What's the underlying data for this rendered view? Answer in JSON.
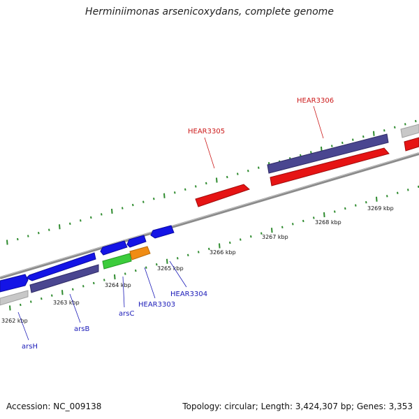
{
  "title": "Herminiimonas arsenicoxydans, complete genome",
  "footer": {
    "accession": "Accession: NC_009138",
    "summary": "Topology: circular; Length: 3,424,307 bp; Genes: 3,353"
  },
  "colors": {
    "backbone": "#8a8a8a",
    "tick": "#2e8b2e",
    "forward_gene": "#1414e6",
    "reverse_gene": "#e61414",
    "pseudo_gene": "#4a4690",
    "other_gene": "#c8c8c8",
    "green_gene": "#3ccc3c",
    "orange_gene": "#f08c14",
    "label_blue": "#1a1ab8",
    "label_red": "#cc1a1a"
  },
  "scale_labels": [
    "3262 kbp",
    "3263 kbp",
    "3264 kbp",
    "3265 kbp",
    "3266 kbp",
    "3267 kbp",
    "3268 kbp",
    "3269 kbp"
  ],
  "gene_labels": {
    "arsH": "arsH",
    "arsB": "arsB",
    "arsC": "arsC",
    "HEAR3303": "HEAR3303",
    "HEAR3304": "HEAR3304",
    "HEAR3305": "HEAR3305",
    "HEAR3306": "HEAR3306"
  }
}
